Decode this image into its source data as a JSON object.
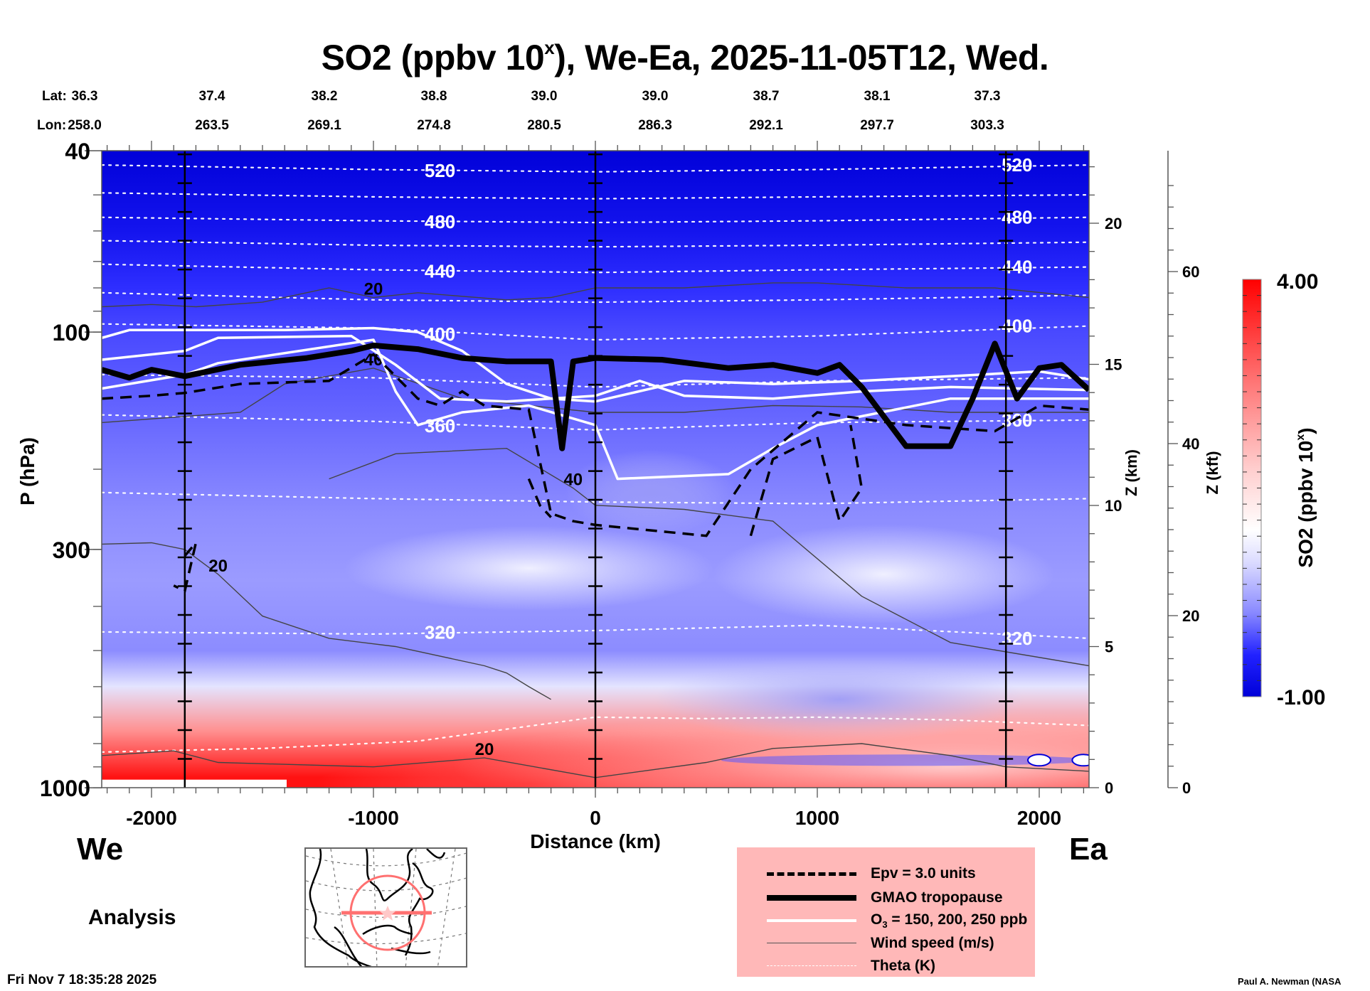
{
  "title": {
    "species": "SO2",
    "units_prefix": "(ppbv 10",
    "units_sup": "x",
    "rest": "), We-Ea, 2025-11-05T12, Wed."
  },
  "lat_lon": {
    "lat_label": "Lat:",
    "lon_label": "Lon:",
    "lat": [
      "36.3",
      "37.4",
      "38.2",
      "38.8",
      "39.0",
      "39.0",
      "38.7",
      "38.1",
      "37.3"
    ],
    "lon": [
      "258.0",
      "263.5",
      "269.1",
      "274.8",
      "280.5",
      "286.3",
      "292.1",
      "297.7",
      "303.3"
    ]
  },
  "direction": {
    "west": "We",
    "east": "Ea"
  },
  "analysis_label": "Analysis",
  "timestamp": "Fri Nov  7 18:35:28 2025",
  "credit": "Paul A. Newman (NASA",
  "legend": {
    "items": [
      {
        "label": "Epv = 3.0 units",
        "style": "dashed-thick"
      },
      {
        "label": "GMAO tropopause",
        "style": "solid-heavy"
      },
      {
        "label_main": "O",
        "label_sub": "3",
        "label_rest": " = 150, 200, 250 ppb",
        "style": "solid-white"
      },
      {
        "label": "Wind speed (m/s)",
        "style": "solid-thin"
      },
      {
        "label": "Theta (K)",
        "style": "dotted-white"
      }
    ]
  },
  "colors": {
    "high": "#ff0000",
    "mid": "#ffffff",
    "low": "#0000d8",
    "legend_bg": "#ffb8b8",
    "map_marker": "#ff7070"
  },
  "chart_data": {
    "type": "heatmap",
    "title": "SO2 (ppbv 10^x), We-Ea, 2025-11-05T12, Wed.",
    "xlabel": "Distance (km)",
    "ylabel": "P (hPa)",
    "y2label": "Z (km)",
    "y3label": "Z (kft)",
    "colorbar_label": "SO2 (ppbv 10^x)",
    "xlim": [
      -2224,
      2224
    ],
    "ylim": [
      1000,
      40
    ],
    "yscale": "log",
    "x_ticks": [
      -2000,
      -1000,
      0,
      1000,
      2000
    ],
    "x_tick_labels": [
      "-2000",
      "-1000",
      "0",
      "1000",
      "2000"
    ],
    "y_ticks": [
      40,
      100,
      300,
      1000
    ],
    "y_tick_labels": [
      "40",
      "100",
      "300",
      "1000"
    ],
    "z_km_ticks": [
      0,
      5,
      10,
      15,
      20
    ],
    "z_kft_ticks": [
      0,
      20,
      40,
      60
    ],
    "colorbar": {
      "min": -1.0,
      "max": 4.0,
      "min_label": "-1.00",
      "max_label": "4.00",
      "levels": 26
    },
    "vertical_markers_km": [
      -1850,
      0,
      1850
    ],
    "field_bands": [
      {
        "p": 40,
        "value": -0.95
      },
      {
        "p": 60,
        "value": -0.75
      },
      {
        "p": 80,
        "value": -0.55
      },
      {
        "p": 100,
        "value": -0.45
      },
      {
        "p": 150,
        "value": -0.35
      },
      {
        "p": 250,
        "value": -0.2
      },
      {
        "p": 350,
        "value": -0.12
      },
      {
        "p": 500,
        "value": -0.2
      },
      {
        "p": 600,
        "value": 0.3
      },
      {
        "p": 750,
        "value": 1.6
      },
      {
        "p": 950,
        "value": 2.6
      }
    ],
    "theta_contours": [
      {
        "label": "520",
        "points": [
          [
            -2224,
            43
          ],
          [
            -1000,
            44
          ],
          [
            0,
            44.5
          ],
          [
            1000,
            44
          ],
          [
            2224,
            43
          ]
        ]
      },
      {
        "label": "",
        "points": [
          [
            -2224,
            49.5
          ],
          [
            -1000,
            50.5
          ],
          [
            0,
            51
          ],
          [
            1000,
            50.5
          ],
          [
            2224,
            50
          ]
        ]
      },
      {
        "label": "480",
        "points": [
          [
            -2224,
            56
          ],
          [
            -1000,
            57
          ],
          [
            0,
            57.5
          ],
          [
            1000,
            57
          ],
          [
            2224,
            56
          ]
        ]
      },
      {
        "label": "",
        "points": [
          [
            -2224,
            63
          ],
          [
            -1000,
            64.5
          ],
          [
            0,
            65
          ],
          [
            1000,
            64.5
          ],
          [
            2224,
            63.5
          ]
        ]
      },
      {
        "label": "440",
        "points": [
          [
            -2224,
            71
          ],
          [
            -1000,
            73
          ],
          [
            0,
            74
          ],
          [
            1000,
            73
          ],
          [
            2224,
            72
          ]
        ]
      },
      {
        "label": "",
        "points": [
          [
            -2224,
            82
          ],
          [
            -1000,
            85
          ],
          [
            0,
            86
          ],
          [
            1000,
            85
          ],
          [
            2224,
            83
          ]
        ]
      },
      {
        "label": "400",
        "points": [
          [
            -2224,
            96
          ],
          [
            -1000,
            98
          ],
          [
            0,
            104
          ],
          [
            1000,
            102
          ],
          [
            2224,
            97
          ]
        ]
      },
      {
        "label": "",
        "points": [
          [
            -2224,
            124
          ],
          [
            -1000,
            126
          ],
          [
            0,
            132
          ],
          [
            1000,
            128
          ],
          [
            2224,
            126
          ]
        ]
      },
      {
        "label": "360",
        "points": [
          [
            -2224,
            152
          ],
          [
            -1000,
            157
          ],
          [
            0,
            164
          ],
          [
            1000,
            158
          ],
          [
            2224,
            156
          ]
        ]
      },
      {
        "label": "",
        "points": [
          [
            -2224,
            225
          ],
          [
            -1000,
            232
          ],
          [
            0,
            236
          ],
          [
            1000,
            238
          ],
          [
            2224,
            232
          ]
        ]
      },
      {
        "label": "320",
        "points": [
          [
            -2224,
            455
          ],
          [
            -1000,
            460
          ],
          [
            0,
            452
          ],
          [
            1000,
            440
          ],
          [
            2224,
            470
          ]
        ]
      },
      {
        "label": "",
        "points": [
          [
            -2224,
            835
          ],
          [
            -1500,
            820
          ],
          [
            -800,
            790
          ],
          [
            0,
            700
          ],
          [
            500,
            705
          ],
          [
            1000,
            700
          ],
          [
            1600,
            710
          ],
          [
            2224,
            730
          ]
        ]
      }
    ],
    "tropopause": [
      [
        -2224,
        121
      ],
      [
        -2100,
        126
      ],
      [
        -2000,
        121
      ],
      [
        -1850,
        125
      ],
      [
        -1600,
        118
      ],
      [
        -1300,
        114
      ],
      [
        -1100,
        110
      ],
      [
        -1000,
        107
      ],
      [
        -800,
        109
      ],
      [
        -600,
        114
      ],
      [
        -400,
        116
      ],
      [
        -200,
        116
      ],
      [
        -150,
        180
      ],
      [
        -100,
        116
      ],
      [
        0,
        114
      ],
      [
        300,
        115
      ],
      [
        600,
        120
      ],
      [
        800,
        118
      ],
      [
        1000,
        123
      ],
      [
        1100,
        118
      ],
      [
        1200,
        132
      ],
      [
        1400,
        178
      ],
      [
        1600,
        178
      ],
      [
        1700,
        140
      ],
      [
        1800,
        106
      ],
      [
        1900,
        140
      ],
      [
        2000,
        120
      ],
      [
        2100,
        118
      ],
      [
        2224,
        134
      ]
    ],
    "ozone_contours": [
      [
        [
          -2224,
          103
        ],
        [
          -2100,
          99
        ],
        [
          -1400,
          99
        ],
        [
          -1000,
          98
        ],
        [
          -800,
          100
        ],
        [
          -600,
          110
        ],
        [
          -400,
          130
        ],
        [
          -200,
          140
        ],
        [
          0,
          142
        ],
        [
          400,
          128
        ],
        [
          800,
          130
        ],
        [
          1200,
          128
        ],
        [
          1600,
          125
        ],
        [
          2000,
          122
        ],
        [
          2224,
          127
        ]
      ],
      [
        [
          -2224,
          115
        ],
        [
          -1850,
          110
        ],
        [
          -1700,
          103
        ],
        [
          -1100,
          102
        ],
        [
          -900,
          118
        ],
        [
          -700,
          140
        ],
        [
          -400,
          142
        ],
        [
          0,
          138
        ],
        [
          200,
          128
        ],
        [
          400,
          138
        ],
        [
          800,
          140
        ],
        [
          1200,
          135
        ],
        [
          1600,
          132
        ],
        [
          2224,
          134
        ]
      ],
      [
        [
          -2224,
          133
        ],
        [
          -1850,
          124
        ],
        [
          -1700,
          117
        ],
        [
          -1000,
          104
        ],
        [
          -900,
          135
        ],
        [
          -800,
          160
        ],
        [
          -600,
          150
        ],
        [
          -300,
          145
        ],
        [
          0,
          160
        ],
        [
          100,
          210
        ],
        [
          600,
          205
        ],
        [
          800,
          180
        ],
        [
          1000,
          160
        ],
        [
          1600,
          140
        ],
        [
          2224,
          140
        ]
      ]
    ],
    "epv_contours": [
      [
        [
          -2224,
          140
        ],
        [
          -2000,
          138
        ],
        [
          -1850,
          136
        ],
        [
          -1600,
          130
        ],
        [
          -1200,
          128
        ],
        [
          -1000,
          112
        ],
        [
          -900,
          125
        ],
        [
          -800,
          140
        ],
        [
          -700,
          145
        ],
        [
          -600,
          135
        ],
        [
          -500,
          145
        ],
        [
          -300,
          148
        ],
        [
          -200,
          250
        ],
        [
          -100,
          260
        ],
        [
          0,
          265
        ],
        [
          500,
          280
        ],
        [
          700,
          200
        ],
        [
          1000,
          150
        ],
        [
          1400,
          160
        ],
        [
          1800,
          165
        ],
        [
          2000,
          145
        ],
        [
          2224,
          148
        ]
      ],
      [
        [
          -1850,
          310
        ],
        [
          -1800,
          290
        ],
        [
          -1850,
          370
        ],
        [
          -1900,
          360
        ]
      ],
      [
        [
          700,
          280
        ],
        [
          800,
          190
        ],
        [
          1000,
          170
        ],
        [
          1100,
          260
        ],
        [
          1200,
          220
        ],
        [
          1150,
          160
        ]
      ],
      [
        [
          -300,
          210
        ],
        [
          -250,
          240
        ],
        [
          -200,
          255
        ]
      ]
    ],
    "wind_contours": [
      {
        "label": "20",
        "points": [
          [
            -2224,
            88
          ],
          [
            -2000,
            87
          ],
          [
            -1800,
            88
          ],
          [
            -1500,
            86
          ],
          [
            -1200,
            80
          ],
          [
            -1000,
            84
          ],
          [
            -800,
            82
          ],
          [
            -400,
            85
          ],
          [
            -200,
            84
          ],
          [
            0,
            80
          ],
          [
            400,
            80
          ],
          [
            800,
            78
          ],
          [
            1000,
            78
          ],
          [
            1400,
            80
          ],
          [
            1800,
            80
          ],
          [
            2224,
            84
          ]
        ]
      },
      {
        "label": "40",
        "points": [
          [
            -2224,
            158
          ],
          [
            -1600,
            150
          ],
          [
            -1400,
            130
          ],
          [
            -1000,
            120
          ],
          [
            -600,
            140
          ],
          [
            0,
            150
          ],
          [
            400,
            150
          ],
          [
            800,
            145
          ],
          [
            1200,
            146
          ],
          [
            1600,
            150
          ],
          [
            2224,
            150
          ]
        ]
      },
      {
        "label": "40",
        "points": [
          [
            -1200,
            210
          ],
          [
            -900,
            185
          ],
          [
            -400,
            180
          ],
          [
            -100,
            220
          ],
          [
            0,
            240
          ],
          [
            400,
            245
          ],
          [
            800,
            260
          ],
          [
            1200,
            380
          ],
          [
            1600,
            480
          ],
          [
            2224,
            540
          ]
        ]
      },
      {
        "label": "20",
        "points": [
          [
            -2224,
            292
          ],
          [
            -2000,
            290
          ],
          [
            -1850,
            300
          ],
          [
            -1700,
            340
          ],
          [
            -1500,
            420
          ],
          [
            -1200,
            470
          ],
          [
            -900,
            490
          ],
          [
            -500,
            540
          ],
          [
            -400,
            560
          ],
          [
            -300,
            600
          ],
          [
            -200,
            640
          ]
        ]
      },
      {
        "label": "20",
        "points": [
          [
            -2224,
            850
          ],
          [
            -1900,
            830
          ],
          [
            -1700,
            880
          ],
          [
            -1000,
            900
          ],
          [
            -500,
            860
          ],
          [
            0,
            950
          ],
          [
            500,
            880
          ],
          [
            800,
            820
          ],
          [
            1200,
            800
          ],
          [
            1600,
            850
          ],
          [
            1850,
            900
          ],
          [
            2224,
            920
          ]
        ]
      }
    ]
  }
}
